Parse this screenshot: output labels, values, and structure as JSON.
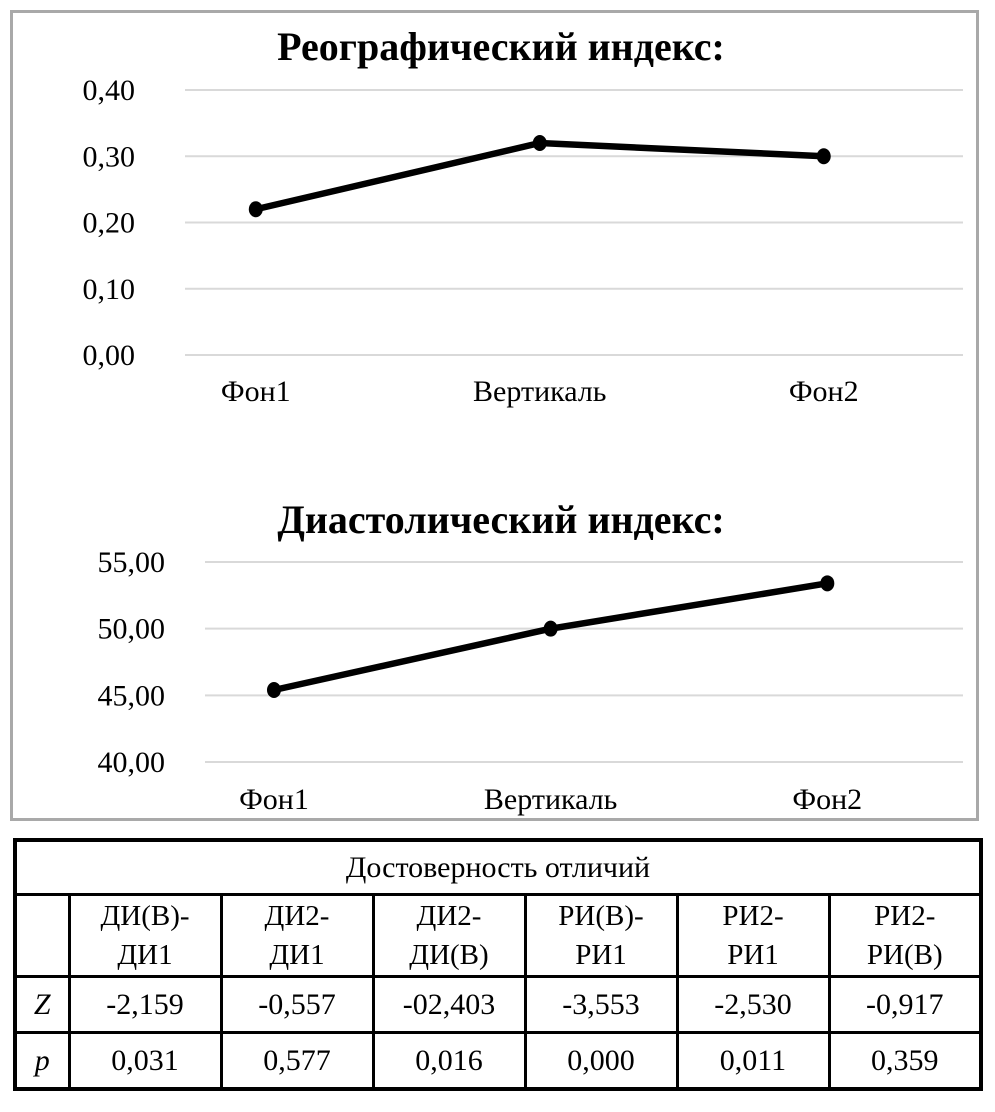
{
  "chart_data": [
    {
      "type": "line",
      "title": "Реографический индекс:",
      "categories": [
        "Фон1",
        "Вертикаль",
        "Фон2"
      ],
      "values": [
        0.22,
        0.32,
        0.3
      ],
      "ylim": [
        0.0,
        0.4
      ],
      "yticks": [
        {
          "value": 0.4,
          "label": "0,40"
        },
        {
          "value": 0.3,
          "label": "0,30"
        },
        {
          "value": 0.2,
          "label": "0,20"
        },
        {
          "value": 0.1,
          "label": "0,10"
        },
        {
          "value": 0.0,
          "label": "0,00"
        }
      ],
      "xlabel": "",
      "ylabel": "",
      "grid": true,
      "legend": "none",
      "line_color": "#000000",
      "marker": "filled-circle"
    },
    {
      "type": "line",
      "title": "Диастолический индекс:",
      "categories": [
        "Фон1",
        "Вертикаль",
        "Фон2"
      ],
      "values": [
        45.4,
        50.0,
        53.4
      ],
      "ylim": [
        40.0,
        55.0
      ],
      "yticks": [
        {
          "value": 55.0,
          "label": "55,00"
        },
        {
          "value": 50.0,
          "label": "50,00"
        },
        {
          "value": 45.0,
          "label": "45,00"
        },
        {
          "value": 40.0,
          "label": "40,00"
        }
      ],
      "xlabel": "",
      "ylabel": "",
      "grid": true,
      "legend": "none",
      "line_color": "#000000",
      "marker": "filled-circle"
    }
  ],
  "table": {
    "title": "Достоверность отличий",
    "corner": "",
    "col_headers": [
      "ДИ(В)-\nДИ1",
      "ДИ2-\nДИ1",
      "ДИ2-\nДИ(В)",
      "РИ(В)-\nРИ1",
      "РИ2-\nРИ1",
      "РИ2-\nРИ(В)"
    ],
    "rows": [
      {
        "label": "Z",
        "values": [
          "-2,159",
          "-0,557",
          "-02,403",
          "-3,553",
          "-2,530",
          "-0,917"
        ]
      },
      {
        "label": "p",
        "values": [
          "0,031",
          "0,577",
          "0,016",
          "0,000",
          "0,011",
          "0,359"
        ]
      }
    ]
  },
  "colors": {
    "grid_line": "#d9d9d9",
    "series_line": "#000000",
    "panel_border": "#a9a9a9",
    "table_border": "#000000"
  }
}
